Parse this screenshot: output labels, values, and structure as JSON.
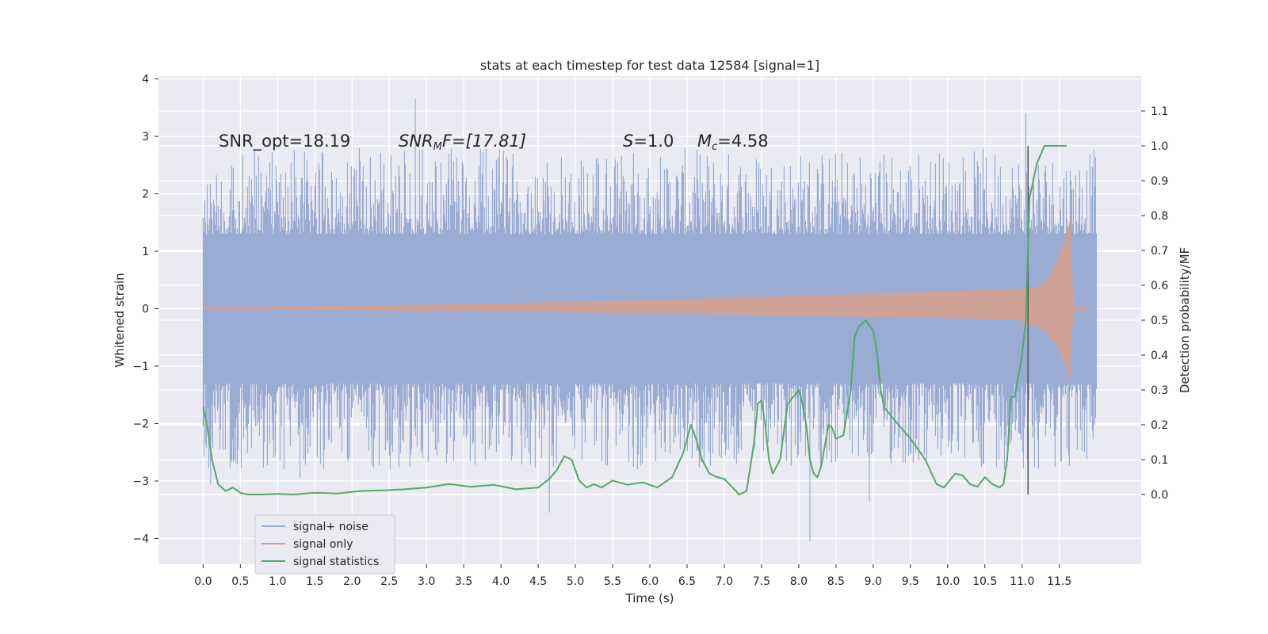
{
  "chart_data": {
    "type": "line",
    "title": "stats at each timestep for test data 12584 [signal=1]",
    "xlabel": "Time (s)",
    "ylabel": "Whitened strain",
    "ylabel_right": "Detection probability/MF",
    "xlim": [
      -0.6,
      12.6
    ],
    "ylim": [
      -4.45,
      4.05
    ],
    "ylim_right": [
      -0.2,
      1.2
    ],
    "x_ticks": [
      "0.0",
      "0.5",
      "1.0",
      "1.5",
      "2.0",
      "2.5",
      "3.0",
      "3.5",
      "4.0",
      "4.5",
      "5.0",
      "5.5",
      "6.0",
      "6.5",
      "7.0",
      "7.5",
      "8.0",
      "8.5",
      "9.0",
      "9.5",
      "10.0",
      "10.5",
      "11.0",
      "11.5"
    ],
    "y_ticks": [
      "4",
      "3",
      "2",
      "1",
      "0",
      "−1",
      "−2",
      "−3",
      "−4"
    ],
    "y_ticks_right": [
      "0.0",
      "0.1",
      "0.2",
      "0.3",
      "0.4",
      "0.5",
      "0.6",
      "0.7",
      "0.8",
      "0.9",
      "1.0",
      "1.1"
    ],
    "annotations": {
      "snr_opt": "SNR_opt=18.19",
      "snr_mf_italic": "SNR",
      "snr_mf_sub": "M",
      "snr_mf_rest": "F=[17.81]",
      "s_italic": "S",
      "s_rest": "=1.0",
      "mc_italic": "M",
      "mc_sub": "c",
      "mc_rest": "=4.58"
    },
    "legend": {
      "placement": "lower-left",
      "entries": [
        "signal+ noise",
        "signal only",
        "signal statistics"
      ]
    },
    "colors": {
      "noise": "#9aacd3",
      "signal": "#d4a08f",
      "stats": "#55a868",
      "vline": "#555555",
      "background": "#eaeaf2",
      "grid": "#ffffff"
    },
    "series": [
      {
        "name": "signal+ noise",
        "kind": "noise-band",
        "x_range": [
          0.0,
          12.0
        ],
        "core_envelope": 1.0,
        "peak_extremes": [
          {
            "x": 2.85,
            "y": 3.65
          },
          {
            "x": 11.05,
            "y": 3.4
          },
          {
            "x": 4.65,
            "y": -3.55
          },
          {
            "x": 8.15,
            "y": -4.05
          },
          {
            "x": 8.95,
            "y": -3.35
          },
          {
            "x": 1.3,
            "y": -2.95
          },
          {
            "x": 0.1,
            "y": -3.05
          }
        ]
      },
      {
        "name": "signal only",
        "kind": "chirp",
        "x_range": [
          0.0,
          11.9
        ],
        "amp_start": 0.03,
        "amp_at_11": 0.35,
        "amp_peak": 1.6,
        "t_peak": 11.65
      },
      {
        "name": "signal statistics",
        "kind": "line",
        "x": [
          0.0,
          0.05,
          0.12,
          0.2,
          0.3,
          0.4,
          0.5,
          0.6,
          0.8,
          1.0,
          1.2,
          1.5,
          1.8,
          2.1,
          2.4,
          2.7,
          3.0,
          3.3,
          3.6,
          3.9,
          4.2,
          4.5,
          4.65,
          4.75,
          4.85,
          4.95,
          5.05,
          5.15,
          5.25,
          5.35,
          5.5,
          5.7,
          5.9,
          6.1,
          6.3,
          6.45,
          6.55,
          6.62,
          6.7,
          6.8,
          6.9,
          7.0,
          7.2,
          7.3,
          7.4,
          7.45,
          7.5,
          7.55,
          7.6,
          7.65,
          7.7,
          7.75,
          7.85,
          8.0,
          8.05,
          8.1,
          8.15,
          8.2,
          8.25,
          8.3,
          8.4,
          8.45,
          8.5,
          8.6,
          8.7,
          8.75,
          8.8,
          8.9,
          9.0,
          9.05,
          9.1,
          9.15,
          9.3,
          9.5,
          9.7,
          9.85,
          9.95,
          10.1,
          10.2,
          10.3,
          10.4,
          10.5,
          10.6,
          10.7,
          10.75,
          10.8,
          10.85,
          10.9,
          11.0,
          11.05,
          11.1,
          11.2,
          11.3,
          11.6
        ],
        "y": [
          0.25,
          0.2,
          0.1,
          0.03,
          0.01,
          0.02,
          0.005,
          0.0,
          0.0,
          0.002,
          0.0,
          0.005,
          0.003,
          0.01,
          0.012,
          0.015,
          0.02,
          0.03,
          0.022,
          0.028,
          0.015,
          0.02,
          0.045,
          0.07,
          0.11,
          0.1,
          0.04,
          0.02,
          0.03,
          0.02,
          0.04,
          0.028,
          0.035,
          0.02,
          0.05,
          0.12,
          0.2,
          0.16,
          0.1,
          0.06,
          0.05,
          0.045,
          0.0,
          0.01,
          0.15,
          0.26,
          0.27,
          0.2,
          0.1,
          0.06,
          0.08,
          0.1,
          0.26,
          0.3,
          0.26,
          0.2,
          0.1,
          0.06,
          0.05,
          0.08,
          0.2,
          0.19,
          0.16,
          0.17,
          0.3,
          0.45,
          0.48,
          0.5,
          0.47,
          0.41,
          0.3,
          0.25,
          0.21,
          0.16,
          0.1,
          0.03,
          0.02,
          0.06,
          0.055,
          0.03,
          0.022,
          0.05,
          0.03,
          0.02,
          0.03,
          0.1,
          0.28,
          0.28,
          0.4,
          0.5,
          0.85,
          0.95,
          1.0,
          1.0
        ],
        "vline_x": 11.08
      }
    ]
  }
}
